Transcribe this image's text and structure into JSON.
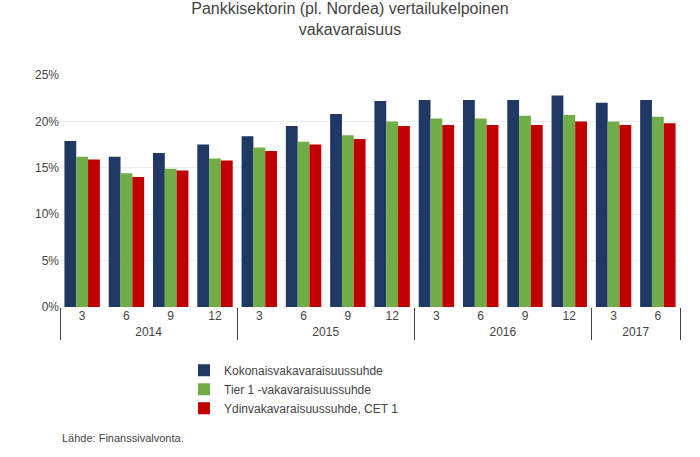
{
  "chart_data": {
    "type": "bar",
    "title": "Pankkisektorin (pl. Nordea) vertailukelpoinen\nvakavaraisuus",
    "categories": [
      "3",
      "6",
      "9",
      "12",
      "3",
      "6",
      "9",
      "12",
      "3",
      "6",
      "9",
      "12",
      "3",
      "6"
    ],
    "category_groups": [
      "2014",
      "2014",
      "2014",
      "2014",
      "2015",
      "2015",
      "2015",
      "2015",
      "2016",
      "2016",
      "2016",
      "2016",
      "2017",
      "2017"
    ],
    "series": [
      {
        "name": "Kokonaisvakavaraisuussuhde",
        "color": "#1F3864",
        "values": [
          0.179,
          0.162,
          0.166,
          0.175,
          0.184,
          0.195,
          0.208,
          0.222,
          0.223,
          0.223,
          0.223,
          0.228,
          0.22,
          0.223
        ]
      },
      {
        "name": "Tier 1 -vakavaraisuussuhde",
        "color": "#70AD47",
        "values": [
          0.162,
          0.144,
          0.149,
          0.16,
          0.172,
          0.178,
          0.185,
          0.2,
          0.203,
          0.203,
          0.206,
          0.207,
          0.2,
          0.205
        ]
      },
      {
        "name": "Ydinvakavaraisuussuhde, CET 1",
        "color": "#C00000",
        "values": [
          0.159,
          0.14,
          0.147,
          0.158,
          0.168,
          0.175,
          0.181,
          0.195,
          0.196,
          0.196,
          0.196,
          0.2,
          0.196,
          0.198
        ]
      }
    ],
    "ylim": [
      0,
      0.25
    ],
    "yticks": [
      {
        "value": 0.0,
        "label": "0%"
      },
      {
        "value": 0.05,
        "label": "5%"
      },
      {
        "value": 0.1,
        "label": "10%"
      },
      {
        "value": 0.15,
        "label": "15%"
      },
      {
        "value": 0.2,
        "label": "20%"
      },
      {
        "value": 0.25,
        "label": "25%"
      }
    ],
    "grid": true,
    "legend": "bottom",
    "annotations": [
      "Lähde: Finanssivalvonta."
    ]
  }
}
